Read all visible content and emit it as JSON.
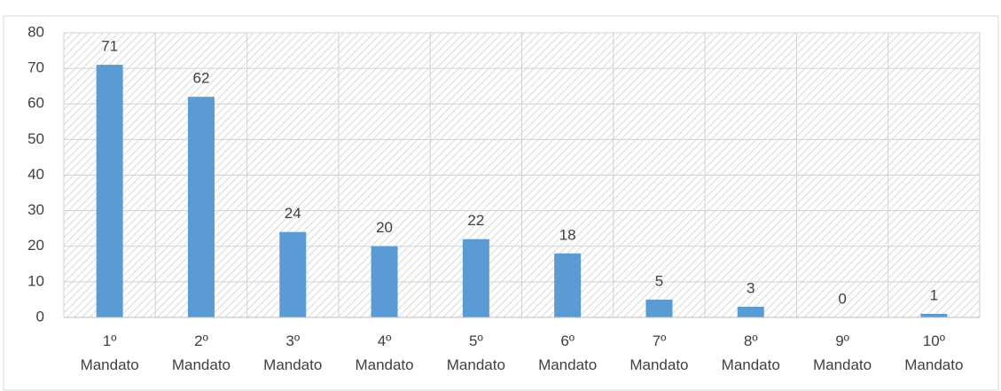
{
  "chart_data": {
    "type": "bar",
    "categories": [
      "1º Mandato",
      "2º Mandato",
      "3º Mandato",
      "4º Mandato",
      "5º Mandato",
      "6º Mandato",
      "7º Mandato",
      "8º Mandato",
      "9º Mandato",
      "10º Mandato"
    ],
    "values": [
      71,
      62,
      24,
      20,
      22,
      18,
      5,
      3,
      0,
      1
    ],
    "color": "#5b9bd5",
    "ylim": [
      0,
      80
    ],
    "yticks": [
      0,
      10,
      20,
      30,
      40,
      50,
      60,
      70,
      80
    ],
    "grid": true,
    "data_labels": true
  }
}
